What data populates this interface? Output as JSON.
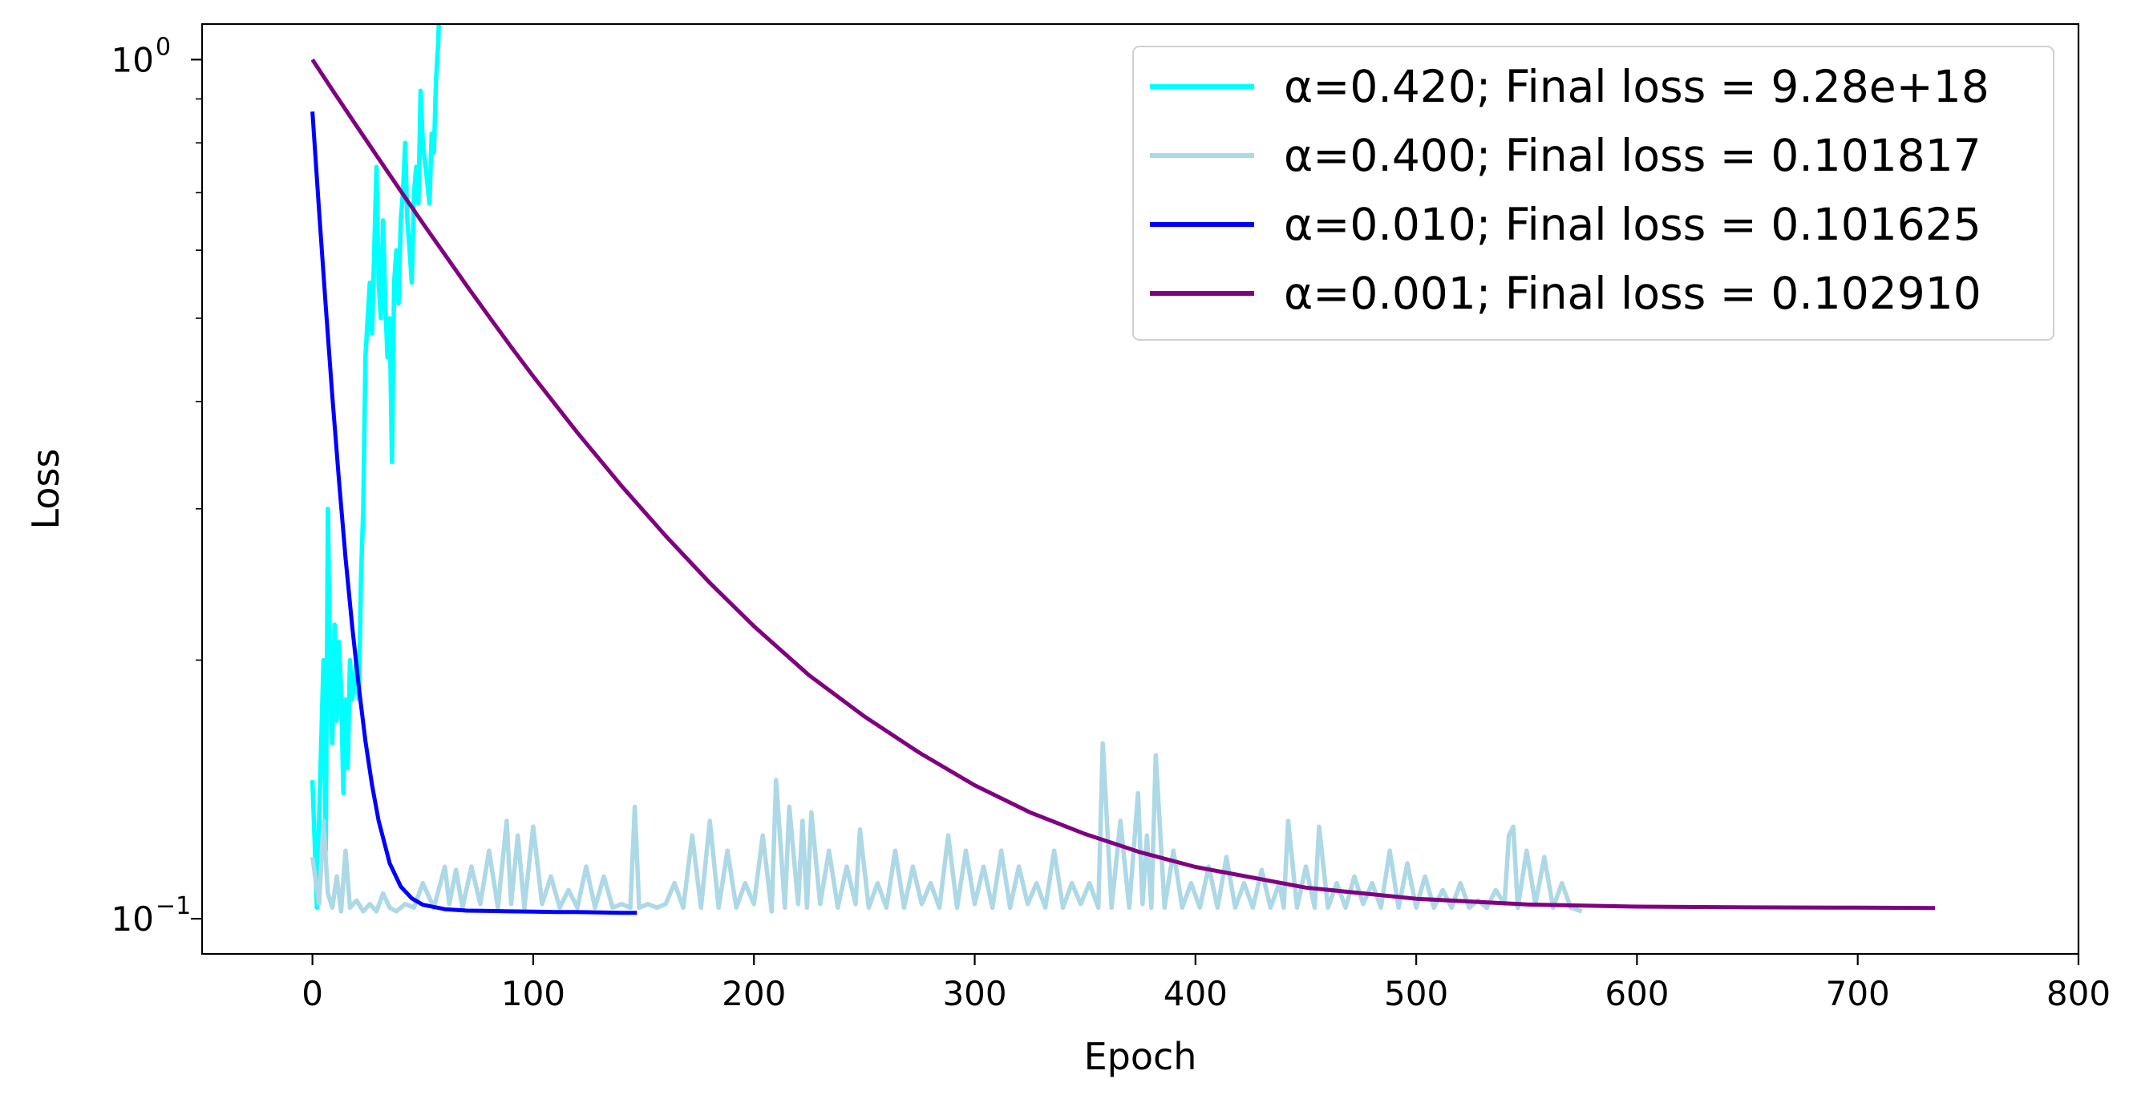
{
  "chart_data": {
    "type": "line",
    "title": "",
    "xlabel": "Epoch",
    "ylabel": "Loss",
    "xlim": [
      -50,
      800
    ],
    "ylim": [
      0.091,
      1.1
    ],
    "yscale": "log",
    "grid": false,
    "legend_position": "top-right",
    "x_ticks": [
      0,
      100,
      200,
      300,
      400,
      500,
      600,
      700,
      800
    ],
    "x_tick_labels": [
      "0",
      "100",
      "200",
      "300",
      "400",
      "500",
      "600",
      "700",
      "800"
    ],
    "y_ticks": [
      {
        "value": 1.0,
        "mantissa": "10",
        "exponent": "0"
      },
      {
        "value": 0.1,
        "mantissa": "10",
        "exponent": "−1"
      }
    ],
    "series": [
      {
        "name": "α=0.420; Final loss = 9.28e+18",
        "color": "#00FFFF",
        "x": [
          0,
          1,
          2,
          3,
          5,
          6,
          7,
          8,
          9,
          10,
          11,
          12,
          13,
          14,
          15,
          16,
          17,
          18,
          19,
          20,
          21,
          22,
          23,
          24,
          25,
          26,
          27,
          28,
          29,
          30,
          31,
          32,
          33,
          34,
          35,
          36,
          37,
          38,
          39,
          40,
          41,
          42,
          43,
          44,
          45,
          46,
          47,
          48,
          49,
          50,
          51,
          52,
          53,
          54,
          55,
          56,
          57,
          58
        ],
        "y": [
          0.145,
          0.123,
          0.103,
          0.13,
          0.2,
          0.12,
          0.3,
          0.19,
          0.16,
          0.22,
          0.17,
          0.21,
          0.185,
          0.14,
          0.18,
          0.15,
          0.2,
          0.18,
          0.19,
          0.2,
          0.18,
          0.25,
          0.3,
          0.45,
          0.5,
          0.55,
          0.48,
          0.6,
          0.75,
          0.55,
          0.5,
          0.65,
          0.52,
          0.45,
          0.5,
          0.34,
          0.55,
          0.6,
          0.52,
          0.65,
          0.7,
          0.8,
          0.65,
          0.6,
          0.55,
          0.7,
          0.75,
          0.68,
          0.92,
          0.8,
          0.76,
          0.72,
          0.68,
          0.82,
          0.78,
          0.95,
          1.05,
          1.3
        ]
      },
      {
        "name": "α=0.400; Final loss = 0.101817",
        "color": "#ADD8E6",
        "x": [
          0,
          3,
          5,
          7,
          9,
          11,
          13,
          15,
          17,
          20,
          23,
          26,
          29,
          32,
          35,
          38,
          42,
          46,
          50,
          55,
          60,
          62,
          65,
          68,
          72,
          76,
          80,
          84,
          88,
          90,
          93,
          96,
          100,
          104,
          108,
          112,
          116,
          120,
          124,
          128,
          132,
          136,
          140,
          144,
          146,
          148,
          152,
          156,
          160,
          164,
          168,
          172,
          176,
          180,
          184,
          188,
          192,
          196,
          200,
          204,
          208,
          210,
          214,
          216,
          220,
          222,
          224,
          226,
          230,
          234,
          238,
          242,
          246,
          248,
          252,
          256,
          260,
          264,
          268,
          272,
          276,
          280,
          284,
          288,
          292,
          296,
          300,
          304,
          308,
          312,
          316,
          320,
          324,
          328,
          332,
          336,
          340,
          344,
          348,
          352,
          356,
          358,
          362,
          366,
          370,
          374,
          376,
          378,
          380,
          382,
          386,
          390,
          394,
          398,
          402,
          406,
          410,
          414,
          418,
          422,
          426,
          430,
          434,
          438,
          440,
          442,
          446,
          450,
          454,
          456,
          460,
          464,
          468,
          472,
          476,
          480,
          484,
          488,
          492,
          496,
          500,
          504,
          508,
          512,
          516,
          520,
          524,
          528,
          532,
          536,
          540,
          542,
          544,
          546,
          550,
          554,
          558,
          562,
          566,
          570,
          575
        ],
        "y": [
          0.118,
          0.104,
          0.13,
          0.107,
          0.103,
          0.112,
          0.102,
          0.12,
          0.103,
          0.105,
          0.102,
          0.104,
          0.102,
          0.107,
          0.103,
          0.102,
          0.104,
          0.103,
          0.11,
          0.103,
          0.115,
          0.104,
          0.114,
          0.103,
          0.115,
          0.104,
          0.12,
          0.103,
          0.13,
          0.104,
          0.125,
          0.103,
          0.128,
          0.104,
          0.112,
          0.103,
          0.108,
          0.103,
          0.115,
          0.103,
          0.112,
          0.103,
          0.104,
          0.103,
          0.135,
          0.103,
          0.104,
          0.103,
          0.104,
          0.11,
          0.103,
          0.125,
          0.103,
          0.13,
          0.103,
          0.12,
          0.103,
          0.11,
          0.104,
          0.125,
          0.102,
          0.145,
          0.103,
          0.135,
          0.104,
          0.13,
          0.103,
          0.133,
          0.104,
          0.12,
          0.103,
          0.115,
          0.104,
          0.127,
          0.103,
          0.11,
          0.103,
          0.12,
          0.103,
          0.115,
          0.104,
          0.11,
          0.103,
          0.125,
          0.103,
          0.12,
          0.104,
          0.115,
          0.103,
          0.12,
          0.103,
          0.115,
          0.104,
          0.11,
          0.103,
          0.12,
          0.103,
          0.11,
          0.104,
          0.11,
          0.103,
          0.16,
          0.103,
          0.13,
          0.103,
          0.14,
          0.104,
          0.125,
          0.103,
          0.155,
          0.103,
          0.12,
          0.103,
          0.11,
          0.103,
          0.115,
          0.103,
          0.118,
          0.103,
          0.11,
          0.103,
          0.114,
          0.103,
          0.11,
          0.103,
          0.13,
          0.103,
          0.115,
          0.103,
          0.128,
          0.103,
          0.11,
          0.103,
          0.112,
          0.104,
          0.11,
          0.103,
          0.12,
          0.103,
          0.116,
          0.103,
          0.112,
          0.103,
          0.108,
          0.103,
          0.11,
          0.103,
          0.105,
          0.103,
          0.108,
          0.104,
          0.125,
          0.128,
          0.103,
          0.12,
          0.104,
          0.118,
          0.103,
          0.11,
          0.103,
          0.102
        ]
      },
      {
        "name": "α=0.010; Final loss = 0.101625",
        "color": "#0000FF",
        "x": [
          0,
          3,
          6,
          9,
          12,
          15,
          18,
          21,
          24,
          27,
          30,
          35,
          40,
          45,
          50,
          60,
          70,
          80,
          90,
          100,
          110,
          120,
          130,
          140,
          147
        ],
        "y": [
          0.87,
          0.667,
          0.517,
          0.406,
          0.324,
          0.263,
          0.219,
          0.186,
          0.161,
          0.143,
          0.13,
          0.116,
          0.109,
          0.1056,
          0.1038,
          0.1026,
          0.1022,
          0.1021,
          0.102,
          0.1019,
          0.1018,
          0.1018,
          0.1017,
          0.1016,
          0.1016
        ]
      },
      {
        "name": "α=0.001; Final loss = 0.102910",
        "color": "#800080",
        "x": [
          0,
          10,
          20,
          30,
          40,
          50,
          60,
          70,
          80,
          90,
          100,
          120,
          140,
          160,
          180,
          200,
          225,
          250,
          275,
          300,
          325,
          350,
          375,
          400,
          450,
          500,
          550,
          600,
          650,
          700,
          735
        ],
        "y": [
          1.0,
          0.914,
          0.837,
          0.767,
          0.703,
          0.645,
          0.593,
          0.545,
          0.502,
          0.463,
          0.428,
          0.368,
          0.319,
          0.279,
          0.246,
          0.219,
          0.192,
          0.172,
          0.156,
          0.143,
          0.133,
          0.1255,
          0.1195,
          0.1149,
          0.1087,
          0.1055,
          0.1039,
          0.1033,
          0.1031,
          0.103,
          0.1029
        ]
      }
    ]
  }
}
